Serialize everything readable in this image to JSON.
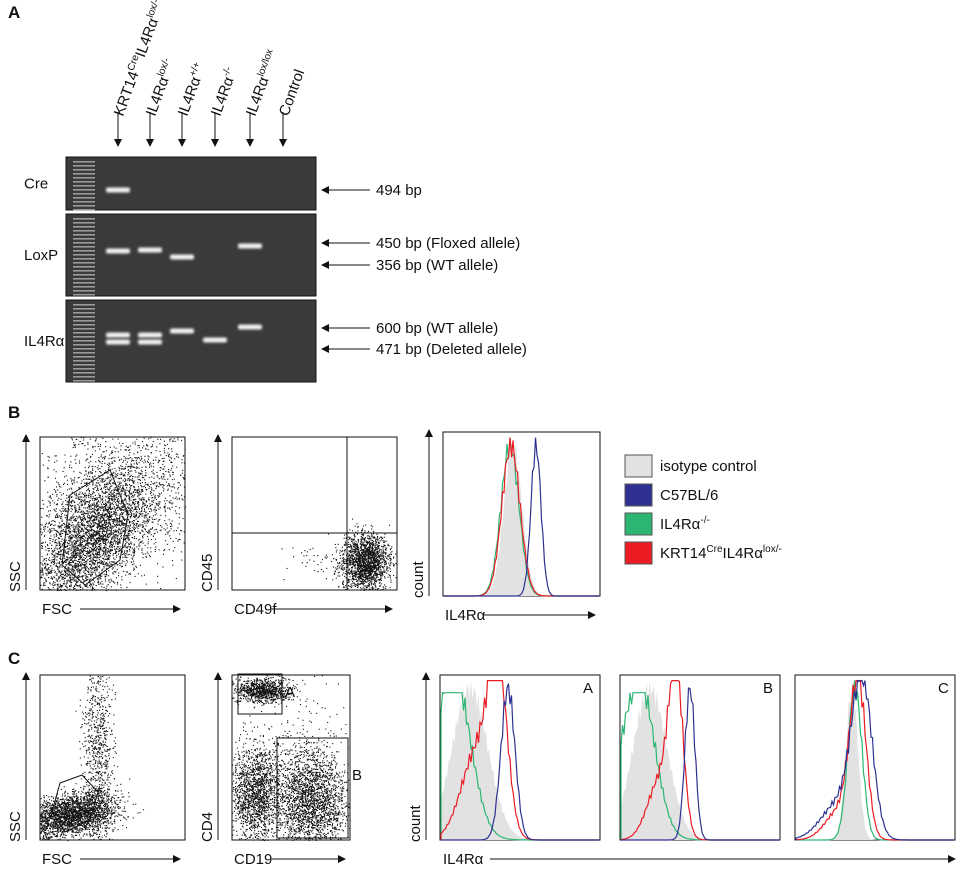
{
  "figure": {
    "A": {
      "label": "A",
      "lanes": [
        [
          {
            "text": "KRT14"
          },
          {
            "sup": "Cre"
          },
          {
            "text": "IL4Rα"
          },
          {
            "sup": "lox/-"
          }
        ],
        [
          {
            "text": "IL4Rα"
          },
          {
            "sup": "lox/-"
          }
        ],
        [
          {
            "text": "IL4Rα"
          },
          {
            "sup": "+/+"
          }
        ],
        [
          {
            "text": "IL4Rα"
          },
          {
            "sup": "-/-"
          }
        ],
        [
          {
            "text": "IL4Rα"
          },
          {
            "sup": "lox/lox"
          }
        ],
        [
          {
            "text": "Control"
          }
        ]
      ],
      "gels": [
        {
          "name": "Cre",
          "bands": [
            "494 bp"
          ]
        },
        {
          "name": "LoxP",
          "bands": [
            "450 bp (Floxed allele)",
            "356 bp (WT allele)"
          ]
        },
        {
          "name": "IL4Rα",
          "bands": [
            "600 bp (WT allele)",
            "471 bp (Deleted allele)"
          ]
        }
      ]
    },
    "B": {
      "label": "B",
      "plots": [
        {
          "y": "SSC",
          "x": "FSC"
        },
        {
          "y": "CD45",
          "x": "CD49f"
        },
        {
          "y": "count",
          "x": "IL4Rα"
        }
      ],
      "legend": [
        {
          "parts": [
            {
              "text": "isotype control"
            }
          ],
          "color": "#e2e2e2"
        },
        {
          "parts": [
            {
              "text": "C57BL/6"
            }
          ],
          "color": "#2e3192"
        },
        {
          "parts": [
            {
              "text": "IL4Rα"
            },
            {
              "sup": "-/-"
            }
          ],
          "color": "#2bb673"
        },
        {
          "parts": [
            {
              "text": "KRT14"
            },
            {
              "sup": "Cre"
            },
            {
              "text": "IL4Rα"
            },
            {
              "sup": "lox/-"
            }
          ],
          "color": "#ed1c24"
        }
      ]
    },
    "C": {
      "label": "C",
      "plots": [
        {
          "y": "SSC",
          "x": "FSC"
        },
        {
          "y": "CD4",
          "x": "CD19",
          "gates": [
            "A",
            "B"
          ]
        },
        {
          "y": "count",
          "x": "IL4Rα"
        }
      ],
      "histograms": [
        "A",
        "B",
        "C"
      ]
    }
  }
}
